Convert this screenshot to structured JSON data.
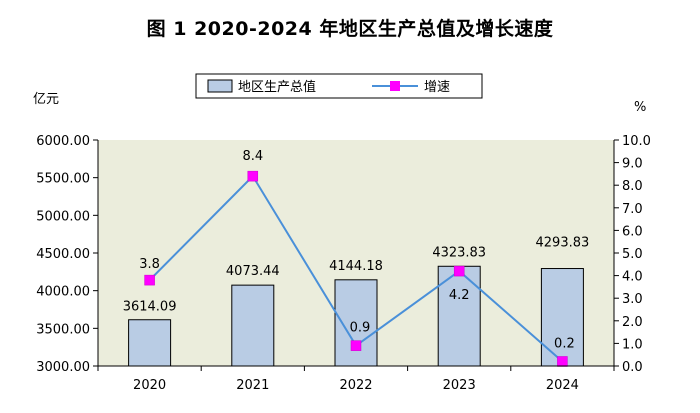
{
  "title": "图 1  2020-2024 年地区生产总值及增长速度",
  "chart_data": {
    "type": "bar",
    "title": "图 1  2020-2024 年地区生产总值及增长速度",
    "categories": [
      "2020",
      "2021",
      "2022",
      "2023",
      "2024"
    ],
    "series": [
      {
        "name": "地区生产总值",
        "type": "bar",
        "axis": "left",
        "values": [
          3614.09,
          4073.44,
          4144.18,
          4323.83,
          4293.83
        ],
        "labels": [
          "3614.09",
          "4073.44",
          "4144.18",
          "4323.83",
          "4293.83"
        ],
        "color": "#b9cce4"
      },
      {
        "name": "增速",
        "type": "line",
        "axis": "right",
        "values": [
          3.8,
          8.4,
          0.9,
          4.2,
          0.2
        ],
        "labels": [
          "3.8",
          "8.4",
          "0.9",
          "4.2",
          "0.2"
        ],
        "color": "#4a90d9",
        "marker_color": "#ff00ff"
      }
    ],
    "y_left": {
      "unit": "亿元",
      "ylim": [
        3000,
        6000
      ],
      "ticks": [
        "3000.00",
        "3500.00",
        "4000.00",
        "4500.00",
        "5000.00",
        "5500.00",
        "6000.00"
      ]
    },
    "y_right": {
      "unit": "%",
      "ylim": [
        0,
        10
      ],
      "ticks": [
        "0.0",
        "1.0",
        "2.0",
        "3.0",
        "4.0",
        "5.0",
        "6.0",
        "7.0",
        "8.0",
        "9.0",
        "10.0"
      ]
    },
    "plot_background": "#ebeddc",
    "grid": false,
    "legend_position": "top-center"
  }
}
